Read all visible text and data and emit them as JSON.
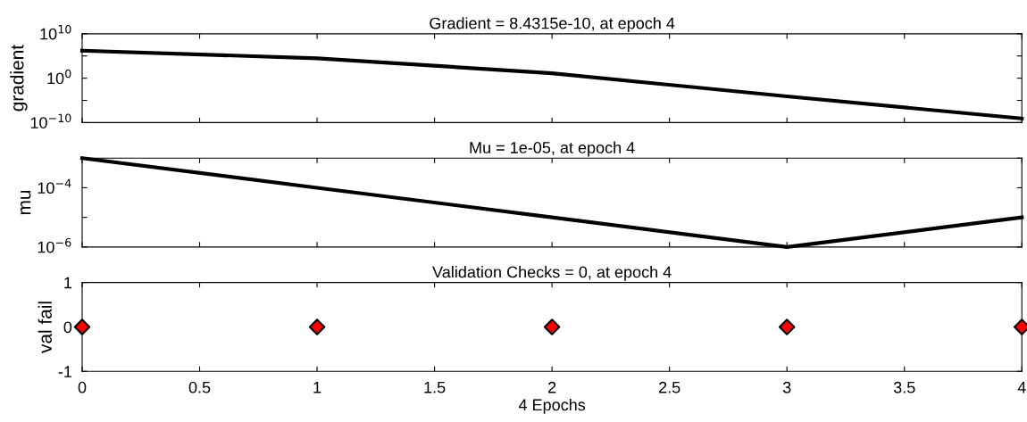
{
  "chart_data": [
    {
      "type": "line",
      "title": "Gradient = 8.4315e-10, at epoch 4",
      "ylabel": "gradient",
      "log": "y",
      "tick_labels": "y",
      "x": [
        0,
        1,
        2,
        3,
        4
      ],
      "series": [
        {
          "color": "#000000",
          "values": [
            1600000.0,
            30000.0,
            13,
            8e-05,
            8.4315e-10
          ]
        }
      ],
      "xlim": [
        0,
        4
      ],
      "xticks": [
        0,
        0.5,
        1,
        1.5,
        2,
        2.5,
        3,
        3.5,
        4
      ],
      "ylim": [
        1e-10,
        10000000000.0
      ],
      "yticks": [
        {
          "value": 1e-10,
          "label": "10$^{−10}$"
        },
        {
          "value": 1e-05,
          "label": null
        },
        {
          "value": 1,
          "label": "10$^{0}$"
        },
        {
          "value": 100000.0,
          "label": null
        },
        {
          "value": 10000000000.0,
          "label": "10$^{10}$"
        }
      ],
      "grid": false,
      "marker": "none",
      "line_style": "solid"
    },
    {
      "type": "line",
      "title": "Mu = 1e-05, at epoch 4",
      "ylabel": "mu",
      "log": "y",
      "tick_labels": "y",
      "x": [
        0,
        1,
        2,
        3,
        4
      ],
      "series": [
        {
          "color": "#000000",
          "values": [
            0.001,
            0.0001,
            1e-05,
            1e-06,
            1e-05
          ]
        }
      ],
      "xlim": [
        0,
        4
      ],
      "xticks": [
        0,
        0.5,
        1,
        1.5,
        2,
        2.5,
        3,
        3.5,
        4
      ],
      "ylim": [
        1e-06,
        0.001
      ],
      "yticks": [
        {
          "value": 1e-06,
          "label": "10$^{−6}$"
        },
        {
          "value": 1e-05,
          "label": null
        },
        {
          "value": 0.0001,
          "label": "10$^{−4}$"
        },
        {
          "value": 0.001,
          "label": null
        }
      ],
      "grid": false,
      "marker": "none",
      "line_style": "solid"
    },
    {
      "type": "scatter",
      "title": "Validation Checks = 0, at epoch 4",
      "ylabel": "val fail",
      "xlabel": "4 Epochs",
      "x": [
        0,
        1,
        2,
        3,
        4
      ],
      "series": [
        {
          "color": "#ff0000",
          "values": [
            0,
            0,
            0,
            0,
            0
          ]
        }
      ],
      "xlim": [
        0,
        4
      ],
      "xticks": [
        0,
        0.5,
        1,
        1.5,
        2,
        2.5,
        3,
        3.5,
        4
      ],
      "ylim": [
        -1,
        1
      ],
      "yticks": [
        -1,
        0,
        1
      ],
      "grid": false,
      "marker": "diamond"
    }
  ]
}
